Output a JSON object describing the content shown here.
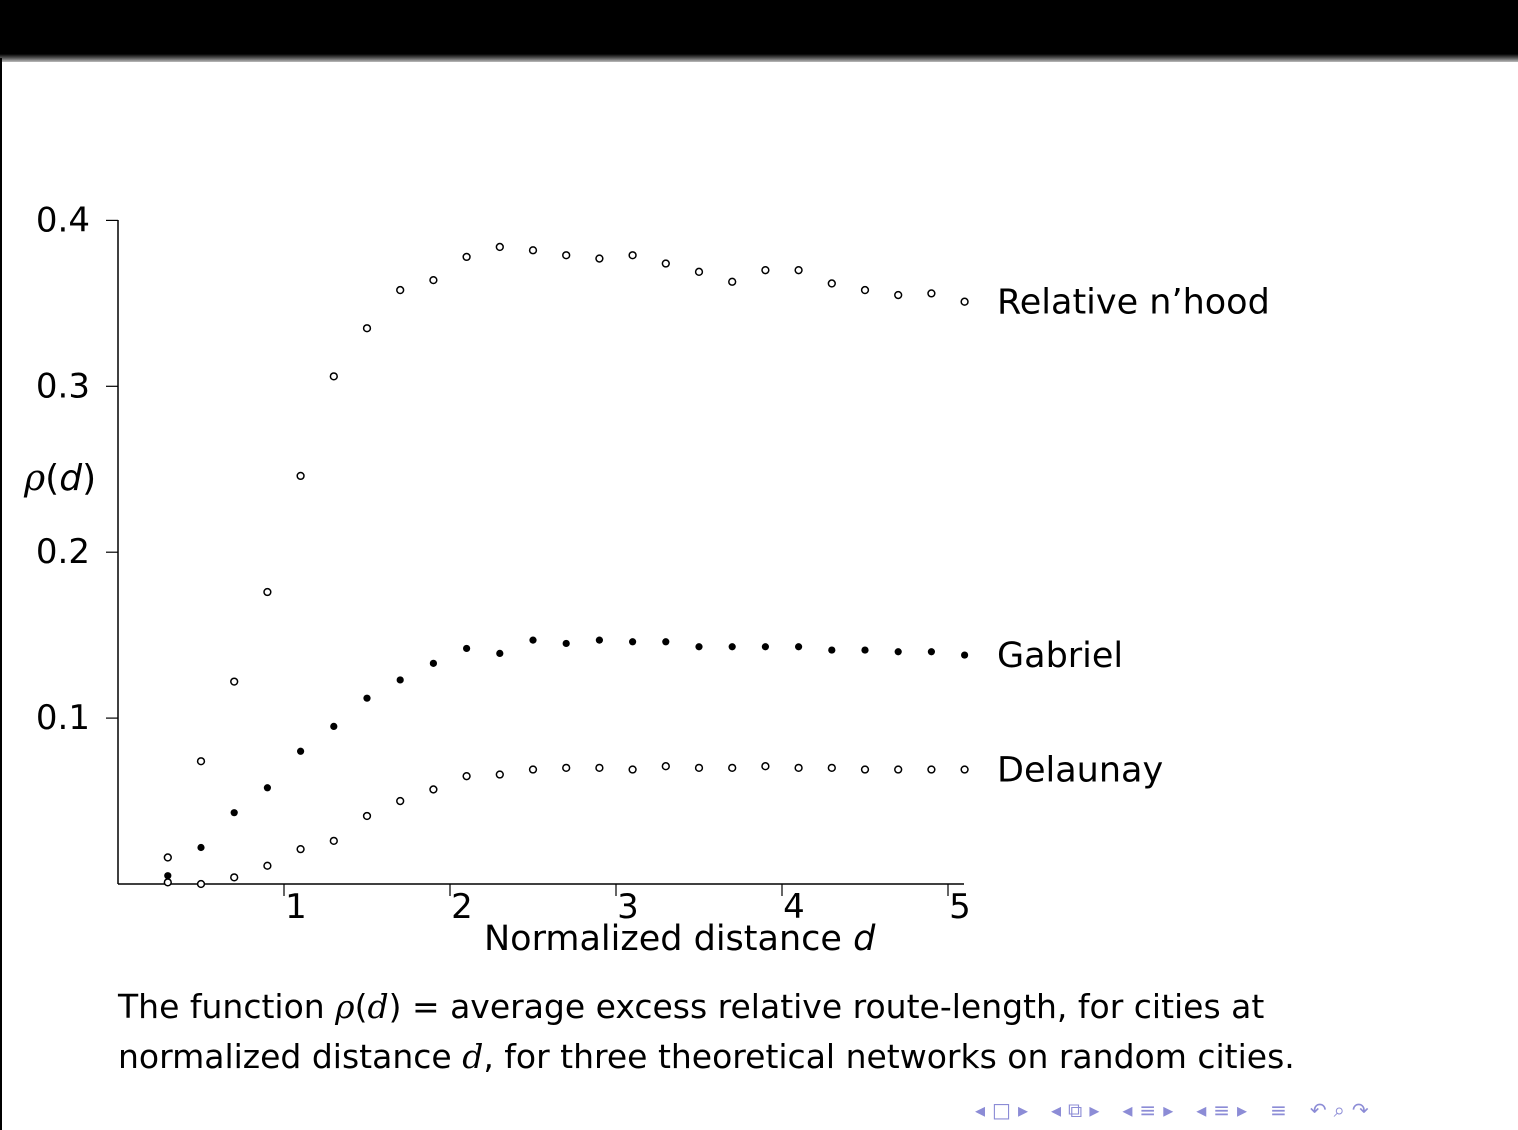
{
  "chart_data": {
    "type": "scatter",
    "xlabel": "Normalized distance",
    "xlabel_var": "d",
    "ylabel_sym": "ρ",
    "ylabel_arg": "d",
    "xlim": [
      0,
      5.1
    ],
    "ylim": [
      0,
      0.4
    ],
    "x_ticks": [
      "1",
      "2",
      "3",
      "4",
      "5"
    ],
    "x_tick_values": [
      1,
      2,
      3,
      4,
      5
    ],
    "y_ticks": [
      "0.1",
      "0.2",
      "0.3",
      "0.4"
    ],
    "y_tick_values": [
      0.1,
      0.2,
      0.3,
      0.4
    ],
    "grid": false,
    "x": [
      0.3,
      0.5,
      0.7,
      0.9,
      1.1,
      1.3,
      1.5,
      1.7,
      1.9,
      2.1,
      2.3,
      2.5,
      2.7,
      2.9,
      3.1,
      3.3,
      3.5,
      3.7,
      3.9,
      4.1,
      4.3,
      4.5,
      4.7,
      4.9,
      5.1
    ],
    "series": [
      {
        "name": "Relative n’hood",
        "marker": "open-circle",
        "values": [
          0.016,
          0.074,
          0.122,
          0.176,
          0.246,
          0.306,
          0.335,
          0.358,
          0.364,
          0.378,
          0.384,
          0.382,
          0.379,
          0.377,
          0.379,
          0.374,
          0.369,
          0.363,
          0.37,
          0.37,
          0.362,
          0.358,
          0.355,
          0.356,
          0.351
        ]
      },
      {
        "name": "Gabriel",
        "marker": "filled-dot",
        "values": [
          0.005,
          0.022,
          0.043,
          0.058,
          0.08,
          0.095,
          0.112,
          0.123,
          0.133,
          0.142,
          0.139,
          0.147,
          0.145,
          0.147,
          0.146,
          0.146,
          0.143,
          0.143,
          0.143,
          0.143,
          0.141,
          0.141,
          0.14,
          0.14,
          0.138
        ]
      },
      {
        "name": "Delaunay",
        "marker": "open-circle",
        "values": [
          0.001,
          0.0,
          0.004,
          0.011,
          0.021,
          0.026,
          0.041,
          0.05,
          0.057,
          0.065,
          0.066,
          0.069,
          0.07,
          0.07,
          0.069,
          0.071,
          0.07,
          0.07,
          0.071,
          0.07,
          0.07,
          0.069,
          0.069,
          0.069,
          0.069
        ]
      }
    ]
  },
  "caption": {
    "prefix": "The function ",
    "sym": "ρ",
    "open": "(",
    "arg": "d",
    "close": ")",
    "eq": " = average excess relative route-length, for cities at",
    "line2_prefix": "normalized distance ",
    "line2_var": "d",
    "line2_suffix": ", for three theoretical networks on random cities."
  },
  "nav": {
    "color": "#8c8cd6",
    "icons": [
      "◂",
      "□",
      "▸",
      "◂",
      "⧉",
      "▸",
      "◂",
      "≡",
      "▸",
      "◂",
      "≡",
      "▸",
      "≡",
      "↶",
      "⌕",
      "↷"
    ]
  }
}
